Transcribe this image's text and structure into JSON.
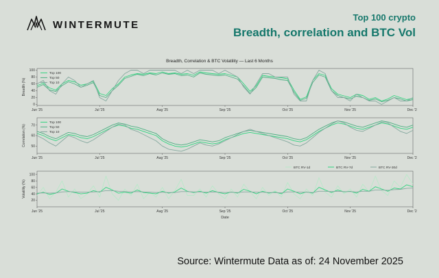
{
  "header": {
    "brand": "WINTERMUTE",
    "title_line1": "Top 100 crypto",
    "title_line2": "Breadth, correlation and BTC Vol"
  },
  "footer": {
    "source": "Source: Wintermute  Data as of: 24 November 2025"
  },
  "colors": {
    "accent_teal": "#15776b",
    "background": "#d9ded8",
    "green_bright": "#2ed47e",
    "green_mid": "#4caf82",
    "green_gray": "#84a89e",
    "green_pale": "#b9e8c9"
  },
  "chart_data": [
    {
      "type": "line",
      "title": "Breadth, Correlation & BTC Volatility — Last 6 Months",
      "ylabel": "Breadth (%)",
      "ylim": [
        -3,
        105
      ],
      "yticks": [
        0,
        20,
        40,
        60,
        80,
        100
      ],
      "xticklabels": [
        "Jun '25",
        "Jul '25",
        "Aug '25",
        "Sep '25",
        "Oct '25",
        "Nov '25",
        "Dec '25"
      ],
      "legend": "inside-left",
      "series": [
        {
          "name": "Top 100",
          "color": "#2ed47e",
          "values": [
            55,
            62,
            48,
            42,
            60,
            70,
            66,
            56,
            60,
            68,
            32,
            26,
            46,
            60,
            80,
            86,
            90,
            88,
            92,
            90,
            95,
            90,
            92,
            88,
            90,
            85,
            95,
            92,
            90,
            88,
            90,
            85,
            80,
            60,
            38,
            55,
            85,
            82,
            80,
            78,
            75,
            42,
            15,
            22,
            70,
            90,
            85,
            46,
            30,
            25,
            20,
            30,
            26,
            15,
            20,
            10,
            16,
            26,
            20,
            14,
            18
          ]
        },
        {
          "name": "Top 50",
          "color": "#4caf82",
          "values": [
            50,
            58,
            42,
            38,
            55,
            66,
            60,
            50,
            56,
            64,
            26,
            20,
            40,
            56,
            76,
            82,
            88,
            84,
            90,
            86,
            92,
            88,
            90,
            84,
            86,
            80,
            92,
            88,
            86,
            84,
            86,
            80,
            74,
            54,
            32,
            50,
            80,
            78,
            76,
            72,
            70,
            36,
            12,
            18,
            64,
            86,
            80,
            40,
            26,
            20,
            16,
            24,
            20,
            12,
            16,
            8,
            12,
            20,
            16,
            10,
            14
          ]
        },
        {
          "name": "Top 10",
          "color": "#84a89e",
          "values": [
            60,
            70,
            40,
            30,
            60,
            80,
            70,
            50,
            60,
            70,
            20,
            10,
            40,
            70,
            90,
            100,
            100,
            90,
            100,
            100,
            100,
            100,
            100,
            90,
            100,
            90,
            100,
            100,
            100,
            90,
            100,
            90,
            80,
            50,
            30,
            60,
            90,
            90,
            80,
            80,
            80,
            30,
            10,
            10,
            70,
            100,
            90,
            40,
            20,
            20,
            10,
            30,
            20,
            10,
            10,
            0,
            10,
            20,
            10,
            10,
            20
          ]
        }
      ]
    },
    {
      "type": "line",
      "title": "",
      "ylabel": "Correlation (%)",
      "ylim": [
        43,
        77
      ],
      "yticks": [
        50,
        60,
        70
      ],
      "xticklabels": [
        "Jun '25",
        "Jul '25",
        "Aug '25",
        "Sep '25",
        "Oct '25",
        "Nov '25",
        "Dec '25"
      ],
      "legend": "inside-left",
      "series": [
        {
          "name": "Top 100",
          "color": "#2ed47e",
          "values": [
            62,
            60,
            57,
            55,
            58,
            61,
            60,
            58,
            57,
            59,
            62,
            65,
            68,
            70,
            69,
            67,
            66,
            64,
            62,
            60,
            55,
            52,
            50,
            49,
            50,
            52,
            54,
            53,
            52,
            53,
            56,
            58,
            60,
            62,
            63,
            62,
            61,
            60,
            59,
            58,
            57,
            55,
            54,
            56,
            60,
            64,
            67,
            70,
            72,
            71,
            69,
            67,
            66,
            68,
            70,
            72,
            71,
            69,
            67,
            66,
            68
          ]
        },
        {
          "name": "Top 50",
          "color": "#4caf82",
          "values": [
            64,
            62,
            59,
            57,
            60,
            63,
            62,
            60,
            59,
            61,
            64,
            67,
            70,
            72,
            71,
            69,
            68,
            66,
            64,
            62,
            57,
            54,
            52,
            51,
            52,
            54,
            56,
            55,
            54,
            55,
            58,
            60,
            62,
            64,
            65,
            64,
            63,
            62,
            61,
            60,
            59,
            57,
            56,
            58,
            62,
            66,
            69,
            72,
            74,
            73,
            71,
            69,
            68,
            70,
            72,
            74,
            73,
            71,
            69,
            68,
            70
          ]
        },
        {
          "name": "Top 10",
          "color": "#84a89e",
          "values": [
            60,
            57,
            53,
            50,
            55,
            60,
            58,
            55,
            53,
            56,
            60,
            64,
            68,
            71,
            70,
            66,
            64,
            61,
            58,
            55,
            50,
            47,
            46,
            45,
            47,
            50,
            53,
            51,
            50,
            52,
            55,
            58,
            61,
            64,
            66,
            64,
            62,
            60,
            58,
            56,
            54,
            51,
            50,
            53,
            58,
            63,
            67,
            71,
            74,
            72,
            68,
            65,
            64,
            67,
            70,
            73,
            72,
            68,
            64,
            62,
            65
          ]
        }
      ]
    },
    {
      "type": "line",
      "title": "",
      "ylabel": "Volatility (%)",
      "xlabel": "Date",
      "ylim": [
        0,
        110
      ],
      "yticks": [
        20,
        40,
        60,
        80,
        100
      ],
      "xticklabels": [
        "Jun '25",
        "Jul '25",
        "Aug '25",
        "Sep '25",
        "Oct '25",
        "Nov '25",
        "Dec '25"
      ],
      "legend": "above-right",
      "series": [
        {
          "name": "BTC RV-1d",
          "color": "#b9e8c9",
          "values": [
            35,
            60,
            25,
            45,
            80,
            30,
            55,
            25,
            40,
            65,
            30,
            95,
            40,
            20,
            55,
            35,
            70,
            25,
            45,
            30,
            60,
            25,
            50,
            85,
            35,
            35,
            55,
            30,
            65,
            40,
            25,
            55,
            30,
            70,
            45,
            25,
            60,
            35,
            50,
            30,
            75,
            40,
            25,
            55,
            35,
            90,
            45,
            30,
            65,
            40,
            55,
            30,
            70,
            45,
            95,
            50,
            35,
            80,
            60,
            100,
            70
          ]
        },
        {
          "name": "BTC RV-7d",
          "color": "#2ed47e",
          "values": [
            40,
            45,
            38,
            42,
            55,
            48,
            44,
            40,
            42,
            50,
            45,
            60,
            52,
            42,
            45,
            42,
            52,
            44,
            42,
            40,
            48,
            42,
            46,
            58,
            48,
            44,
            48,
            42,
            50,
            44,
            40,
            46,
            42,
            54,
            48,
            40,
            48,
            42,
            46,
            40,
            55,
            48,
            40,
            46,
            42,
            60,
            52,
            44,
            52,
            46,
            48,
            42,
            54,
            48,
            62,
            55,
            48,
            58,
            55,
            68,
            62
          ]
        },
        {
          "name": "BTC RV-30d",
          "color": "#84a89e",
          "values": [
            42,
            43,
            42,
            43,
            46,
            47,
            46,
            45,
            45,
            46,
            47,
            50,
            50,
            48,
            47,
            46,
            47,
            46,
            45,
            44,
            45,
            44,
            44,
            47,
            47,
            46,
            46,
            45,
            46,
            45,
            44,
            45,
            44,
            46,
            46,
            45,
            45,
            44,
            44,
            43,
            46,
            46,
            45,
            45,
            44,
            48,
            48,
            47,
            48,
            47,
            47,
            46,
            48,
            48,
            52,
            52,
            51,
            53,
            54,
            57,
            58
          ]
        }
      ]
    }
  ]
}
